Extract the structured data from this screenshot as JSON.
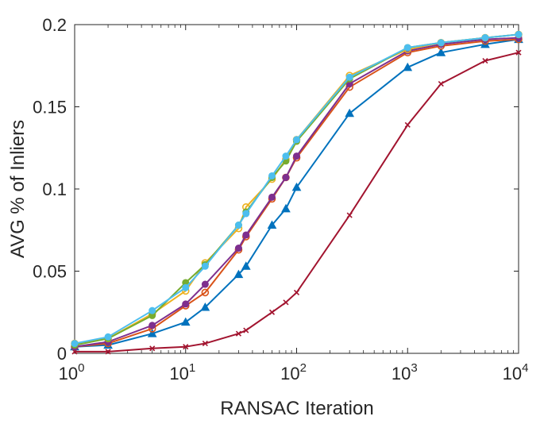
{
  "chart_data": {
    "type": "line",
    "xlabel": "RANSAC Iteration",
    "ylabel": "AVG % of Inliers",
    "xscale": "log",
    "xlim": [
      1,
      10000
    ],
    "ylim": [
      0,
      0.2
    ],
    "grid": false,
    "legend": null,
    "x_ticks": [
      {
        "value": 1,
        "base": "10",
        "exp": "0"
      },
      {
        "value": 10,
        "base": "10",
        "exp": "1"
      },
      {
        "value": 100,
        "base": "10",
        "exp": "2"
      },
      {
        "value": 1000,
        "base": "10",
        "exp": "3"
      },
      {
        "value": 10000,
        "base": "10",
        "exp": "4"
      }
    ],
    "y_ticks": [
      {
        "value": 0,
        "label": "0"
      },
      {
        "value": 0.05,
        "label": "0.05"
      },
      {
        "value": 0.1,
        "label": "0.1"
      },
      {
        "value": 0.15,
        "label": "0.15"
      },
      {
        "value": 0.2,
        "label": "0.2"
      }
    ],
    "x": [
      1,
      2,
      5,
      10,
      15,
      30,
      35,
      60,
      80,
      100,
      300,
      1000,
      2000,
      5000,
      10000
    ],
    "series": [
      {
        "color": "#A2142F",
        "marker": "x",
        "values": [
          0.001,
          0.001,
          0.003,
          0.004,
          0.006,
          0.012,
          0.014,
          0.025,
          0.031,
          0.037,
          0.084,
          0.139,
          0.164,
          0.178,
          0.183
        ]
      },
      {
        "color": "#0072BD",
        "marker": "triangle",
        "values": [
          0.004,
          0.005,
          0.012,
          0.019,
          0.028,
          0.048,
          0.053,
          0.078,
          0.088,
          0.101,
          0.146,
          0.174,
          0.183,
          0.188,
          0.191
        ]
      },
      {
        "color": "#D95319",
        "marker": "circle-open",
        "values": [
          0.004,
          0.006,
          0.015,
          0.029,
          0.037,
          0.063,
          0.071,
          0.094,
          0.107,
          0.119,
          0.162,
          0.183,
          0.187,
          0.19,
          0.191
        ]
      },
      {
        "color": "#7E2F8E",
        "marker": "circle",
        "values": [
          0.004,
          0.007,
          0.017,
          0.03,
          0.042,
          0.064,
          0.072,
          0.095,
          0.107,
          0.12,
          0.164,
          0.184,
          0.188,
          0.191,
          0.192
        ]
      },
      {
        "color": "#EDB120",
        "marker": "circle-open",
        "values": [
          0.006,
          0.009,
          0.024,
          0.038,
          0.055,
          0.076,
          0.089,
          0.106,
          0.118,
          0.13,
          0.169,
          0.185,
          0.189,
          0.192,
          0.194
        ]
      },
      {
        "color": "#77AC30",
        "marker": "circle",
        "values": [
          0.005,
          0.009,
          0.023,
          0.043,
          0.054,
          0.078,
          0.086,
          0.107,
          0.117,
          0.129,
          0.167,
          0.186,
          0.189,
          0.192,
          0.194
        ]
      },
      {
        "color": "#4DBEEE",
        "marker": "circle",
        "values": [
          0.006,
          0.01,
          0.026,
          0.04,
          0.053,
          0.078,
          0.085,
          0.108,
          0.12,
          0.13,
          0.168,
          0.186,
          0.189,
          0.192,
          0.194
        ]
      }
    ]
  }
}
